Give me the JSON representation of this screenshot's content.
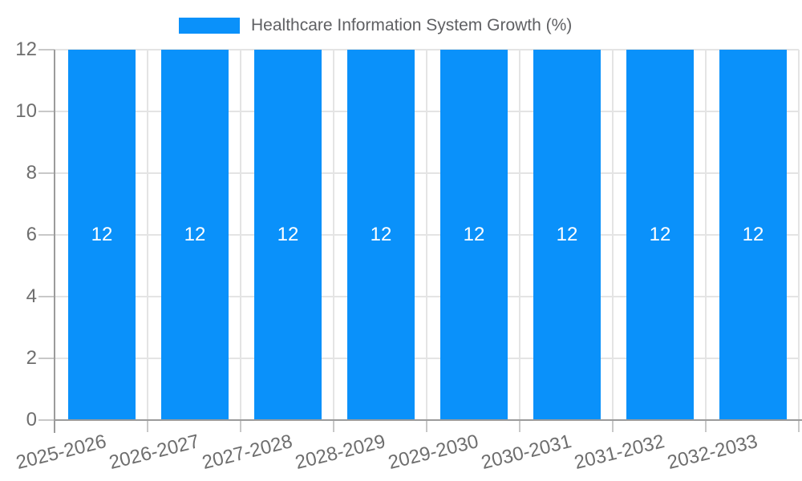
{
  "chart_data": {
    "type": "bar",
    "title": "Healthcare Information System Growth (%)",
    "categories": [
      "2025-2026",
      "2026-2027",
      "2027-2028",
      "2028-2029",
      "2029-2030",
      "2030-2031",
      "2031-2032",
      "2032-2033"
    ],
    "values": [
      12,
      12,
      12,
      12,
      12,
      12,
      12,
      12
    ],
    "bar_value_labels": [
      "12",
      "12",
      "12",
      "12",
      "12",
      "12",
      "12",
      "12"
    ],
    "yticks": [
      0,
      2,
      4,
      6,
      8,
      10,
      12
    ],
    "ytick_labels": [
      "0",
      "2",
      "4",
      "6",
      "8",
      "10",
      "12"
    ],
    "ylim": [
      0,
      12
    ],
    "xlabel": "",
    "ylabel": "",
    "legend_position": "top",
    "legend_entries": [
      "Healthcare Information System Growth (%)"
    ],
    "grid": true,
    "x_label_rotation_deg": -14
  },
  "colors": {
    "bar_fill": "#0a91fa",
    "bar_value_text": "#ffffff",
    "legend_text": "#5f6063",
    "axis_label_text": "#6e6e6e",
    "axis_line": "#9b9b9b",
    "tick_line": "#c8c8c8",
    "grid_line": "#e4e4e4",
    "background": "#ffffff"
  }
}
